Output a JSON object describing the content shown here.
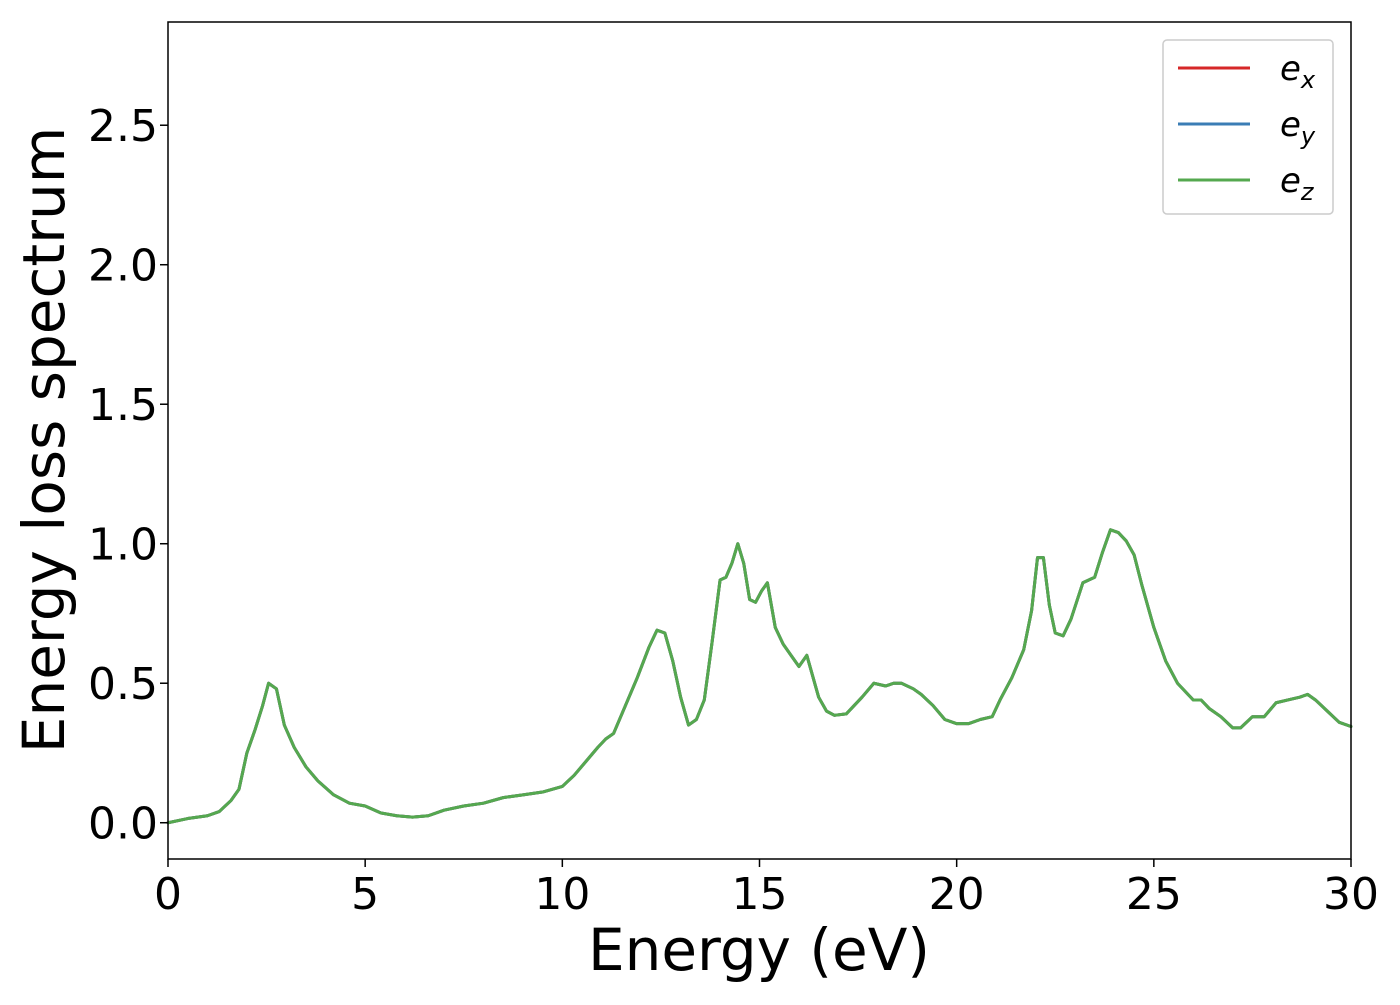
{
  "chart_data": {
    "type": "line",
    "xlabel": "Energy (eV)",
    "ylabel": "Energy loss spectrum",
    "xlim": [
      0,
      30
    ],
    "ylim": [
      -0.13,
      2.87
    ],
    "xticks": [
      "0",
      "5",
      "10",
      "15",
      "20",
      "25",
      "30"
    ],
    "yticks": [
      "0.0",
      "0.5",
      "1.0",
      "1.5",
      "2.0",
      "2.5"
    ],
    "grid": false,
    "legend_position": "top-right",
    "colors": {
      "e_x": "#d62728",
      "e_y": "#3b7db5",
      "e_z": "#55a84f"
    },
    "legend": [
      {
        "base": "e",
        "sub": "x",
        "color": "#d62728"
      },
      {
        "base": "e",
        "sub": "y",
        "color": "#3b7db5"
      },
      {
        "base": "e",
        "sub": "z",
        "color": "#55a84f"
      }
    ],
    "x": [
      0,
      0.5,
      1.0,
      1.3,
      1.6,
      1.8,
      2.0,
      2.2,
      2.4,
      2.55,
      2.75,
      2.95,
      3.2,
      3.5,
      3.8,
      4.2,
      4.6,
      5.0,
      5.4,
      5.8,
      6.2,
      6.6,
      7.0,
      7.5,
      8.0,
      8.5,
      9.0,
      9.5,
      10.0,
      10.3,
      10.6,
      10.9,
      11.1,
      11.3,
      11.6,
      11.9,
      12.2,
      12.4,
      12.6,
      12.8,
      13.0,
      13.2,
      13.4,
      13.6,
      13.8,
      14.0,
      14.15,
      14.3,
      14.45,
      14.6,
      14.75,
      14.9,
      15.05,
      15.2,
      15.4,
      15.6,
      15.8,
      16.0,
      16.2,
      16.5,
      16.7,
      16.9,
      17.2,
      17.6,
      17.9,
      18.2,
      18.4,
      18.6,
      18.9,
      19.1,
      19.4,
      19.7,
      20.0,
      20.3,
      20.6,
      20.9,
      21.1,
      21.4,
      21.7,
      21.9,
      22.05,
      22.2,
      22.35,
      22.5,
      22.7,
      22.9,
      23.2,
      23.5,
      23.7,
      23.9,
      24.1,
      24.3,
      24.5,
      24.7,
      25.0,
      25.3,
      25.6,
      26.0,
      26.2,
      26.4,
      26.7,
      27.0,
      27.2,
      27.5,
      27.8,
      28.1,
      28.4,
      28.7,
      28.9,
      29.1,
      29.4,
      29.7,
      30.0
    ],
    "series": [
      {
        "name": "e_x",
        "color": "#d62728",
        "values": [
          0.0,
          0.015,
          0.025,
          0.04,
          0.08,
          0.12,
          0.25,
          0.33,
          0.42,
          0.5,
          0.48,
          0.35,
          0.27,
          0.2,
          0.15,
          0.1,
          0.07,
          0.06,
          0.035,
          0.025,
          0.02,
          0.025,
          0.045,
          0.06,
          0.07,
          0.09,
          0.1,
          0.11,
          0.13,
          0.17,
          0.22,
          0.27,
          0.3,
          0.32,
          0.42,
          0.52,
          0.63,
          0.69,
          0.68,
          0.58,
          0.45,
          0.35,
          0.37,
          0.44,
          0.65,
          0.87,
          0.88,
          0.93,
          1.0,
          0.93,
          0.8,
          0.79,
          0.83,
          0.86,
          0.7,
          0.64,
          0.6,
          0.56,
          0.6,
          0.45,
          0.4,
          0.385,
          0.39,
          0.45,
          0.5,
          0.49,
          0.5,
          0.5,
          0.48,
          0.46,
          0.42,
          0.37,
          0.355,
          0.355,
          0.37,
          0.38,
          0.44,
          0.52,
          0.62,
          0.76,
          0.95,
          0.95,
          0.78,
          0.68,
          0.67,
          0.73,
          0.86,
          0.88,
          0.97,
          1.05,
          1.04,
          1.01,
          0.96,
          0.85,
          0.7,
          0.58,
          0.5,
          0.44,
          0.44,
          0.41,
          0.38,
          0.34,
          0.34,
          0.38,
          0.38,
          0.43,
          0.44,
          0.45,
          0.46,
          0.44,
          0.4,
          0.36,
          0.345
        ]
      },
      {
        "name": "e_y",
        "color": "#3b7db5",
        "values": [
          0.0,
          0.015,
          0.025,
          0.04,
          0.08,
          0.12,
          0.25,
          0.33,
          0.42,
          0.5,
          0.48,
          0.35,
          0.27,
          0.2,
          0.15,
          0.1,
          0.07,
          0.06,
          0.035,
          0.025,
          0.02,
          0.025,
          0.045,
          0.06,
          0.07,
          0.09,
          0.1,
          0.11,
          0.13,
          0.17,
          0.22,
          0.27,
          0.3,
          0.32,
          0.42,
          0.52,
          0.63,
          0.69,
          0.68,
          0.58,
          0.45,
          0.35,
          0.37,
          0.44,
          0.65,
          0.87,
          0.88,
          0.93,
          1.0,
          0.93,
          0.8,
          0.79,
          0.83,
          0.86,
          0.7,
          0.64,
          0.6,
          0.56,
          0.6,
          0.45,
          0.4,
          0.385,
          0.39,
          0.45,
          0.5,
          0.49,
          0.5,
          0.5,
          0.48,
          0.46,
          0.42,
          0.37,
          0.355,
          0.355,
          0.37,
          0.38,
          0.44,
          0.52,
          0.62,
          0.76,
          0.95,
          0.95,
          0.78,
          0.68,
          0.67,
          0.73,
          0.86,
          0.88,
          0.97,
          1.05,
          1.04,
          1.01,
          0.96,
          0.85,
          0.7,
          0.58,
          0.5,
          0.44,
          0.44,
          0.41,
          0.38,
          0.34,
          0.34,
          0.38,
          0.38,
          0.43,
          0.44,
          0.45,
          0.46,
          0.44,
          0.4,
          0.36,
          0.345
        ]
      },
      {
        "name": "e_z",
        "color": "#55a84f",
        "values": [
          0.0,
          0.015,
          0.025,
          0.04,
          0.08,
          0.12,
          0.25,
          0.33,
          0.42,
          0.5,
          0.48,
          0.35,
          0.27,
          0.2,
          0.15,
          0.1,
          0.07,
          0.06,
          0.035,
          0.025,
          0.02,
          0.025,
          0.045,
          0.06,
          0.07,
          0.09,
          0.1,
          0.11,
          0.13,
          0.17,
          0.22,
          0.27,
          0.3,
          0.32,
          0.42,
          0.52,
          0.63,
          0.69,
          0.68,
          0.58,
          0.45,
          0.35,
          0.37,
          0.44,
          0.65,
          0.87,
          0.88,
          0.93,
          1.0,
          0.93,
          0.8,
          0.79,
          0.83,
          0.86,
          0.7,
          0.64,
          0.6,
          0.56,
          0.6,
          0.45,
          0.4,
          0.385,
          0.39,
          0.45,
          0.5,
          0.49,
          0.5,
          0.5,
          0.48,
          0.46,
          0.42,
          0.37,
          0.355,
          0.355,
          0.37,
          0.38,
          0.44,
          0.52,
          0.62,
          0.76,
          0.95,
          0.95,
          0.78,
          0.68,
          0.67,
          0.73,
          0.86,
          0.88,
          0.97,
          1.05,
          1.04,
          1.01,
          0.96,
          0.85,
          0.7,
          0.58,
          0.5,
          0.44,
          0.44,
          0.41,
          0.38,
          0.34,
          0.34,
          0.38,
          0.38,
          0.43,
          0.44,
          0.45,
          0.46,
          0.44,
          0.4,
          0.36,
          0.345
        ]
      }
    ]
  }
}
